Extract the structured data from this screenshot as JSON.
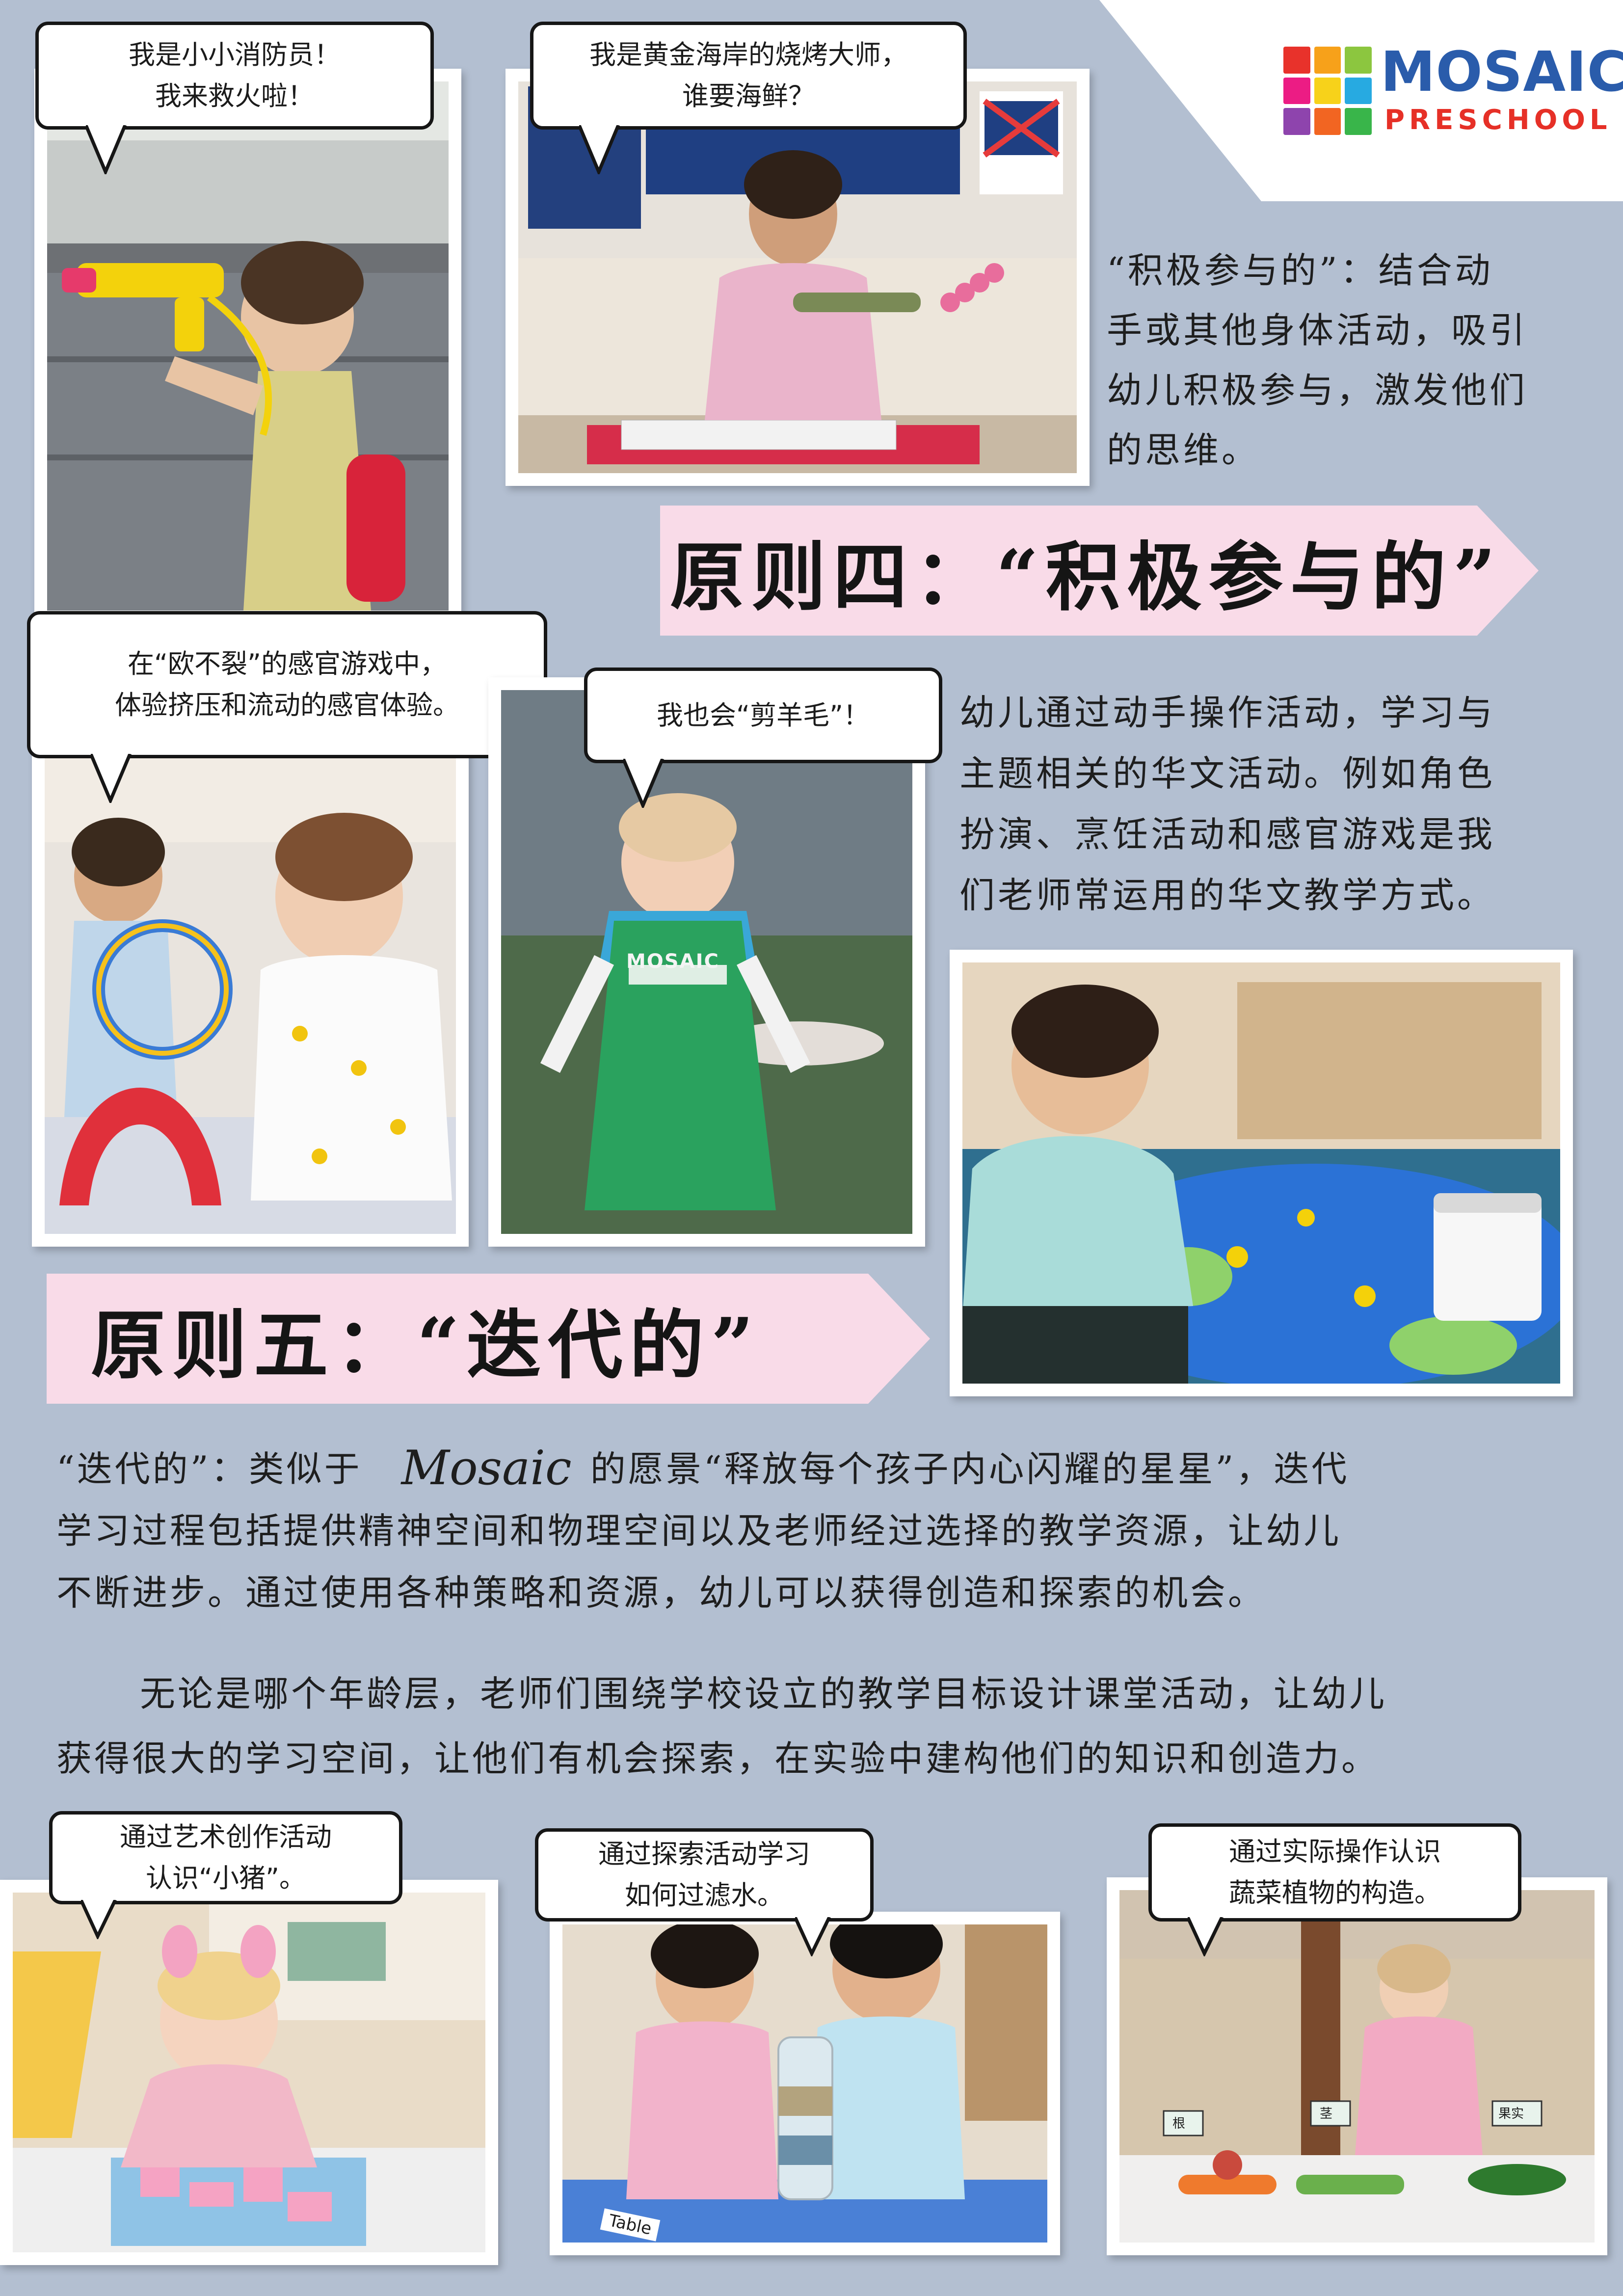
{
  "brand": {
    "name": "MOSAIC",
    "sub": "PRESCHOOL",
    "colors": {
      "blue": "#2a5cab",
      "red": "#e63027"
    },
    "tiles": [
      "#e8322b",
      "#f7a11a",
      "#8cc63f",
      "#ec1c84",
      "#f7d21a",
      "#27aae1",
      "#8e44ad",
      "#f26522",
      "#39b54a"
    ]
  },
  "principle4": {
    "title": "原则四：“积极参与的”",
    "intro_lines": [
      "“积极参与的”：结合动",
      "手或其他身体活动，吸引",
      "幼儿积极参与，激发他们",
      "的思维。"
    ],
    "body_lines": [
      "幼儿通过动手操作活动，学习与",
      "主题相关的华文活动。例如角色",
      "扮演、烹饪活动和感官游戏是我",
      "们老师常运用的华文教学方式。"
    ]
  },
  "principle5": {
    "title": "原则五：“迭代的”",
    "p1_line1_before": "“迭代的”：类似于",
    "signature": "Mosaic",
    "p1_line1_after": "的愿景“释放每个孩子内心闪耀的星星”，迭代",
    "p1_lines": [
      "学习过程包括提供精神空间和物理空间以及老师经过选择的教学资源，让幼儿",
      "不断进步。通过使用各种策略和资源，幼儿可以获得创造和探索的机会。"
    ],
    "p2_lines": [
      "无论是哪个年龄层，老师们围绕学校设立的教学目标设计课堂活动，让幼儿",
      "获得很大的学习空间，让他们有机会探索，在实验中建构他们的知识和创造力。"
    ]
  },
  "bubbles": {
    "b1": [
      "我是小小消防员！",
      "我来救火啦！"
    ],
    "b2": [
      "我是黄金海岸的烧烤大师，",
      "谁要海鲜？"
    ],
    "b3": [
      "在“欧不裂”的感官游戏中，",
      "体验挤压和流动的感官体验。"
    ],
    "b4": [
      "我也会“剪羊毛”！"
    ],
    "b5": [
      "通过艺术创作活动",
      "认识“小猪”。"
    ],
    "b6": [
      "通过探索活动学习",
      "如何过滤水。"
    ],
    "b7": [
      "通过实际操作认识",
      "蔬菜植物的构造。"
    ]
  },
  "photo_labels": {
    "apron": "MOSAIC",
    "veg": [
      "根",
      "茎",
      "果实"
    ],
    "table_tag": "Table"
  }
}
